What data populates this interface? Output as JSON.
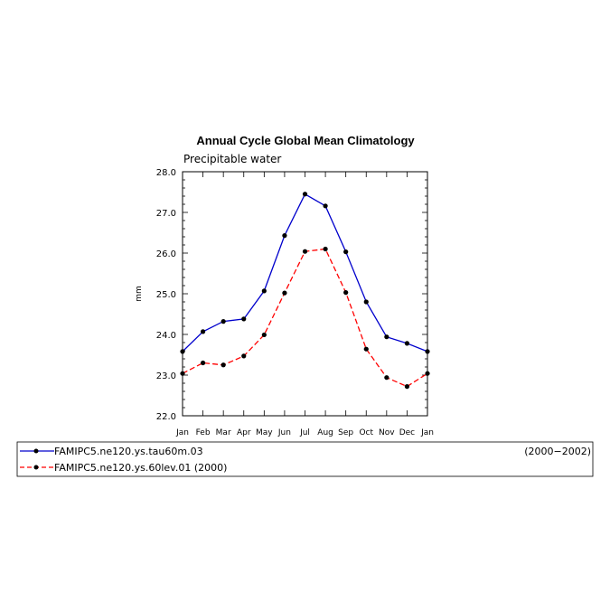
{
  "chart_data": {
    "type": "line",
    "title": "Annual Cycle Global Mean Climatology",
    "subtitle": "Precipitable water",
    "ylabel": "mm",
    "xlabel": "",
    "ylim": [
      22.0,
      28.0
    ],
    "yticks": [
      "22.0",
      "23.0",
      "24.0",
      "25.0",
      "26.0",
      "27.0",
      "28.0"
    ],
    "categories": [
      "Jan",
      "Feb",
      "Mar",
      "Apr",
      "May",
      "Jun",
      "Jul",
      "Aug",
      "Sep",
      "Oct",
      "Nov",
      "Dec",
      "Jan"
    ],
    "grid": false,
    "legend_placement": "bottom",
    "series": [
      {
        "name": "FAMIPC5.ne120.ys.tau60m.03",
        "period": "(2000−2002)",
        "color": "#0000cc",
        "line_style": "solid",
        "values": [
          23.58,
          24.07,
          24.32,
          24.38,
          25.07,
          26.43,
          27.45,
          27.16,
          26.03,
          24.8,
          23.94,
          23.78,
          23.58
        ]
      },
      {
        "name": "FAMIPC5.ne120.ys.60lev.01 (2000)",
        "period": "",
        "color": "#ff0000",
        "line_style": "dashed",
        "values": [
          23.04,
          23.3,
          23.25,
          23.47,
          23.99,
          25.02,
          26.04,
          26.1,
          25.03,
          23.64,
          22.94,
          22.72,
          23.04
        ]
      }
    ]
  }
}
